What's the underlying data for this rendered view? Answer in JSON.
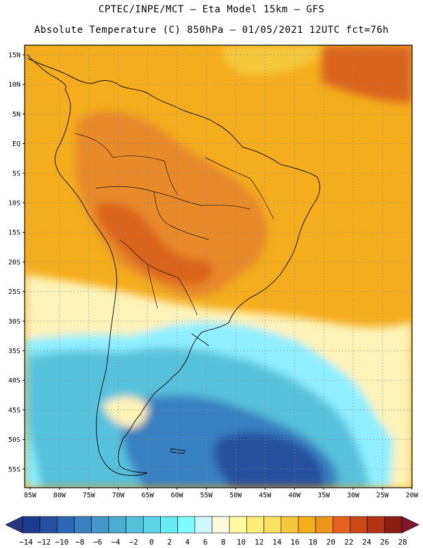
{
  "header": {
    "line1": "CPTEC/INPE/MCT –  Eta Model 15km – GFS",
    "line2": "Absolute Temperature (C) 850hPa – 01/05/2021 12UTC fct=76h"
  },
  "map": {
    "lat_labels": [
      "15N",
      "10N",
      "5N",
      "EQ",
      "5S",
      "10S",
      "15S",
      "20S",
      "25S",
      "30S",
      "35S",
      "40S",
      "45S",
      "50S",
      "55S"
    ],
    "lon_labels": [
      "85W",
      "80W",
      "75W",
      "70W",
      "65W",
      "60W",
      "55W",
      "50W",
      "45W",
      "40W",
      "35W",
      "30W",
      "25W",
      "20W"
    ]
  },
  "colorbar": {
    "labels": [
      "-14",
      "-12",
      "-10",
      "-8",
      "-6",
      "-4",
      "-2",
      "0",
      "2",
      "4",
      "6",
      "8",
      "10",
      "12",
      "14",
      "16",
      "18",
      "20",
      "22",
      "24",
      "26",
      "28"
    ],
    "colors": [
      "#1b3b8f",
      "#25519e",
      "#2e67b1",
      "#3880bf",
      "#4398c9",
      "#4cadd2",
      "#56c1dc",
      "#5fd3e8",
      "#66ecf5",
      "#7ffcff",
      "#cff7ff",
      "#fff9e0",
      "#fffaa0",
      "#ffef78",
      "#fde160",
      "#f5c83c",
      "#f4ad1c",
      "#ee9520",
      "#e5621c",
      "#c94816",
      "#b33214",
      "#8a1e12"
    ],
    "under_color": "#273580",
    "over_color": "#7e1531"
  },
  "legend_colors": {
    "ocean_warm": "#f4ad1c",
    "land_hot": "#e8892a",
    "land_hotter": "#d9651c",
    "mild": "#fff3b8",
    "cool": "#8ef0ff",
    "cold": "#56c1dc",
    "colder": "#3880bf",
    "coldest": "#25519e"
  }
}
